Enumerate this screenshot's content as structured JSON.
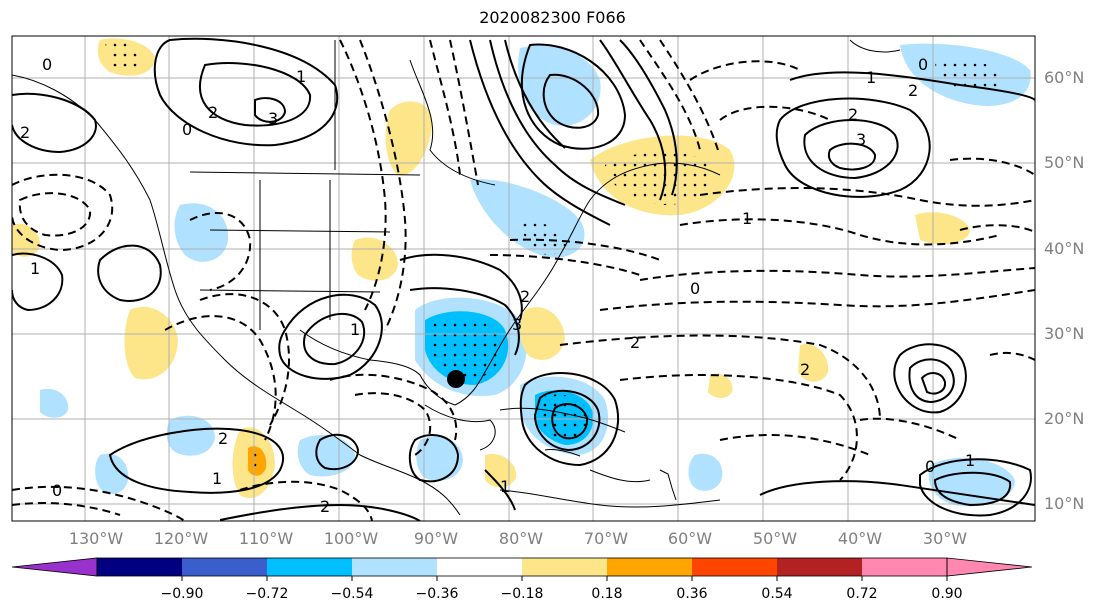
{
  "title": "2020082300 F066",
  "lat_labels": [
    "60°N",
    "50°N",
    "40°N",
    "30°N",
    "20°N",
    "10°N"
  ],
  "lon_labels": [
    "130°W",
    "120°W",
    "110°W",
    "100°W",
    "90°W",
    "80°W",
    "70°W",
    "60°W",
    "50°W",
    "40°W",
    "30°W"
  ],
  "colorbar": {
    "colors": [
      "#9932cc",
      "#000080",
      "#3a5fcd",
      "#00bfff",
      "#b0e2ff",
      "#ffffff",
      "#fde68a",
      "#ffa500",
      "#ff4500",
      "#b22222",
      "#ff87b0"
    ],
    "ticks": [
      "−0.90",
      "−0.72",
      "−0.54",
      "−0.36",
      "−0.18",
      "0.18",
      "0.36",
      "0.54",
      "0.72",
      "0.90"
    ],
    "extend": "both"
  },
  "contour_labels": [
    "0",
    "0",
    "1",
    "2",
    "3",
    "2",
    "1",
    "0",
    "2",
    "3",
    "1",
    "2",
    "1",
    "0",
    "2",
    "3",
    "2",
    "1",
    "0",
    "2",
    "1",
    "2",
    "1",
    "0",
    "2",
    "1"
  ],
  "storm_marker": "black-dot"
}
